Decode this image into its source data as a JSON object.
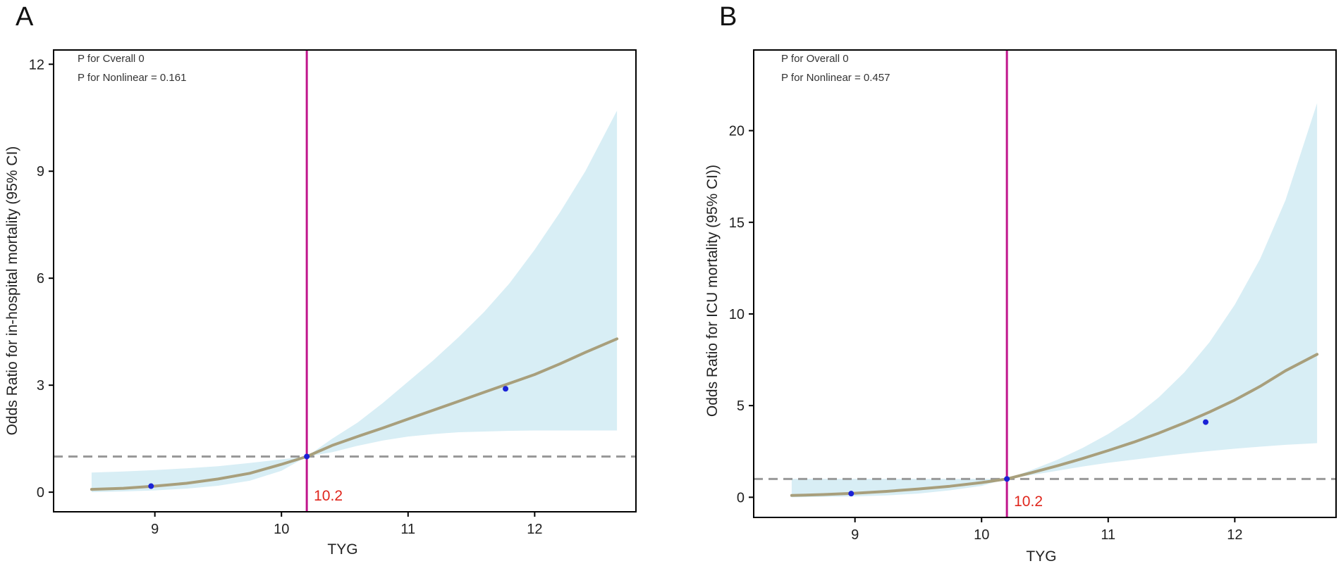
{
  "colors": {
    "ci_band": "#d8eef5",
    "curve": "#a89f7c",
    "ref_vline": "#c0168c",
    "ref_hline": "#999999",
    "point": "#1a22d6",
    "ref_label": "#e0261c"
  },
  "chart_data": [
    {
      "type": "line",
      "panel_label": "A",
      "title": "",
      "xlabel": "TYG",
      "ylabel": "Odds Ratio for in-hospital mortality (95% CI)",
      "xlim": [
        8.2,
        12.8
      ],
      "ylim": [
        -0.55,
        12.4
      ],
      "x_ticks": [
        9,
        10,
        11,
        12
      ],
      "y_ticks": [
        0,
        3,
        6,
        9,
        12
      ],
      "annotations": [
        "P for Cverall 0",
        "P for Nonlinear = 0.161"
      ],
      "ref_vline": 10.2,
      "ref_vline_label": "10.2",
      "ref_hline": 1,
      "x": [
        8.5,
        8.75,
        9.0,
        9.25,
        9.5,
        9.75,
        10.0,
        10.2,
        10.4,
        10.6,
        10.8,
        11.0,
        11.2,
        11.4,
        11.6,
        11.8,
        12.0,
        12.2,
        12.4,
        12.65
      ],
      "series": [
        {
          "name": "Odds Ratio",
          "values": [
            0.08,
            0.11,
            0.17,
            0.25,
            0.37,
            0.53,
            0.78,
            1.0,
            1.31,
            1.56,
            1.8,
            2.05,
            2.3,
            2.55,
            2.8,
            3.05,
            3.3,
            3.6,
            3.92,
            4.3
          ]
        },
        {
          "name": "95% CI lower",
          "values": [
            0.0,
            0.02,
            0.05,
            0.1,
            0.18,
            0.32,
            0.6,
            1.0,
            1.12,
            1.3,
            1.45,
            1.56,
            1.63,
            1.68,
            1.7,
            1.72,
            1.73,
            1.73,
            1.73,
            1.73
          ]
        },
        {
          "name": "95% CI upper",
          "values": [
            0.55,
            0.58,
            0.62,
            0.67,
            0.73,
            0.82,
            0.92,
            1.0,
            1.5,
            1.95,
            2.5,
            3.1,
            3.7,
            4.35,
            5.05,
            5.85,
            6.8,
            7.85,
            9.0,
            10.7
          ]
        }
      ],
      "markers": [
        {
          "x": 8.97,
          "y": 0.17
        },
        {
          "x": 10.2,
          "y": 1.0
        },
        {
          "x": 11.77,
          "y": 2.9
        }
      ]
    },
    {
      "type": "line",
      "panel_label": "B",
      "title": "",
      "xlabel": "TYG",
      "ylabel": "Odds Ratio for ICU mortality (95% CI))",
      "xlim": [
        8.2,
        12.8
      ],
      "ylim": [
        -1.1,
        24.4
      ],
      "x_ticks": [
        9,
        10,
        11,
        12
      ],
      "y_ticks": [
        0,
        5,
        10,
        15,
        20
      ],
      "annotations": [
        "P for Overall 0",
        "P for Nonlinear = 0.457"
      ],
      "ref_vline": 10.2,
      "ref_vline_label": "10.2",
      "ref_hline": 1,
      "x": [
        8.5,
        8.75,
        9.0,
        9.25,
        9.5,
        9.75,
        10.0,
        10.2,
        10.4,
        10.6,
        10.8,
        11.0,
        11.2,
        11.4,
        11.6,
        11.8,
        12.0,
        12.2,
        12.4,
        12.65
      ],
      "series": [
        {
          "name": "Odds Ratio",
          "values": [
            0.1,
            0.15,
            0.22,
            0.32,
            0.45,
            0.6,
            0.8,
            1.0,
            1.35,
            1.72,
            2.12,
            2.55,
            3.0,
            3.5,
            4.05,
            4.65,
            5.3,
            6.05,
            6.9,
            7.8
          ]
        },
        {
          "name": "95% CI lower",
          "values": [
            0.0,
            0.02,
            0.05,
            0.1,
            0.2,
            0.38,
            0.62,
            1.0,
            1.22,
            1.45,
            1.68,
            1.88,
            2.05,
            2.22,
            2.38,
            2.52,
            2.65,
            2.76,
            2.86,
            2.95
          ]
        },
        {
          "name": "95% CI upper",
          "values": [
            1.0,
            1.0,
            1.0,
            1.0,
            1.0,
            1.0,
            1.0,
            1.0,
            1.5,
            2.05,
            2.7,
            3.45,
            4.35,
            5.45,
            6.8,
            8.45,
            10.5,
            13.0,
            16.2,
            21.5
          ]
        }
      ],
      "markers": [
        {
          "x": 8.97,
          "y": 0.2
        },
        {
          "x": 10.2,
          "y": 1.0
        },
        {
          "x": 11.77,
          "y": 4.1
        }
      ]
    }
  ]
}
